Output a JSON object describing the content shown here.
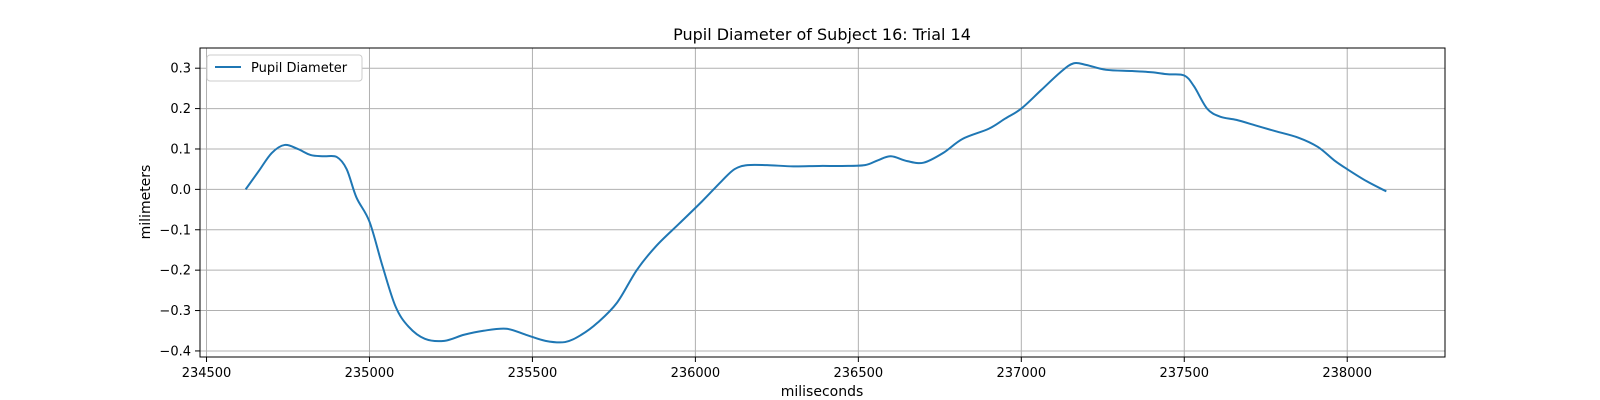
{
  "chart_data": {
    "type": "line",
    "title": "Pupil Diameter of Subject 16: Trial 14",
    "xlabel": "miliseconds",
    "ylabel": "milimeters",
    "xlim": [
      234480,
      238300
    ],
    "ylim": [
      -0.415,
      0.35
    ],
    "xticks": [
      234500,
      235000,
      235500,
      236000,
      236500,
      237000,
      237500,
      238000
    ],
    "yticks": [
      -0.4,
      -0.3,
      -0.2,
      -0.1,
      0.0,
      0.1,
      0.2,
      0.3
    ],
    "ytick_labels": [
      "−0.4",
      "−0.3",
      "−0.2",
      "−0.1",
      "0.0",
      "0.1",
      "0.2",
      "0.3"
    ],
    "grid": true,
    "legend_position": "top-left",
    "color": "#1f77b4",
    "series": [
      {
        "name": "Pupil Diameter",
        "x": [
          234620,
          234660,
          234700,
          234740,
          234780,
          234820,
          234860,
          234900,
          234930,
          234960,
          235000,
          235040,
          235080,
          235120,
          235170,
          235230,
          235290,
          235350,
          235420,
          235480,
          235540,
          235600,
          235650,
          235700,
          235760,
          235820,
          235880,
          235950,
          236020,
          236080,
          236120,
          236160,
          236220,
          236300,
          236380,
          236450,
          236520,
          236560,
          236600,
          236650,
          236700,
          236760,
          236820,
          236900,
          236950,
          237000,
          237060,
          237120,
          237160,
          237200,
          237260,
          237340,
          237400,
          237450,
          237500,
          237530,
          237570,
          237610,
          237660,
          237720,
          237780,
          237850,
          237910,
          237960,
          238000,
          238060,
          238120
        ],
        "y": [
          0.0,
          0.045,
          0.09,
          0.11,
          0.1,
          0.085,
          0.082,
          0.08,
          0.05,
          -0.02,
          -0.08,
          -0.19,
          -0.29,
          -0.34,
          -0.37,
          -0.375,
          -0.36,
          -0.35,
          -0.345,
          -0.36,
          -0.375,
          -0.378,
          -0.36,
          -0.33,
          -0.28,
          -0.2,
          -0.14,
          -0.085,
          -0.03,
          0.02,
          0.05,
          0.06,
          0.06,
          0.057,
          0.058,
          0.058,
          0.06,
          0.072,
          0.082,
          0.07,
          0.066,
          0.09,
          0.125,
          0.15,
          0.175,
          0.2,
          0.245,
          0.29,
          0.312,
          0.308,
          0.296,
          0.293,
          0.29,
          0.285,
          0.282,
          0.255,
          0.2,
          0.18,
          0.172,
          0.158,
          0.144,
          0.128,
          0.105,
          0.072,
          0.05,
          0.02,
          -0.005
        ]
      }
    ]
  }
}
